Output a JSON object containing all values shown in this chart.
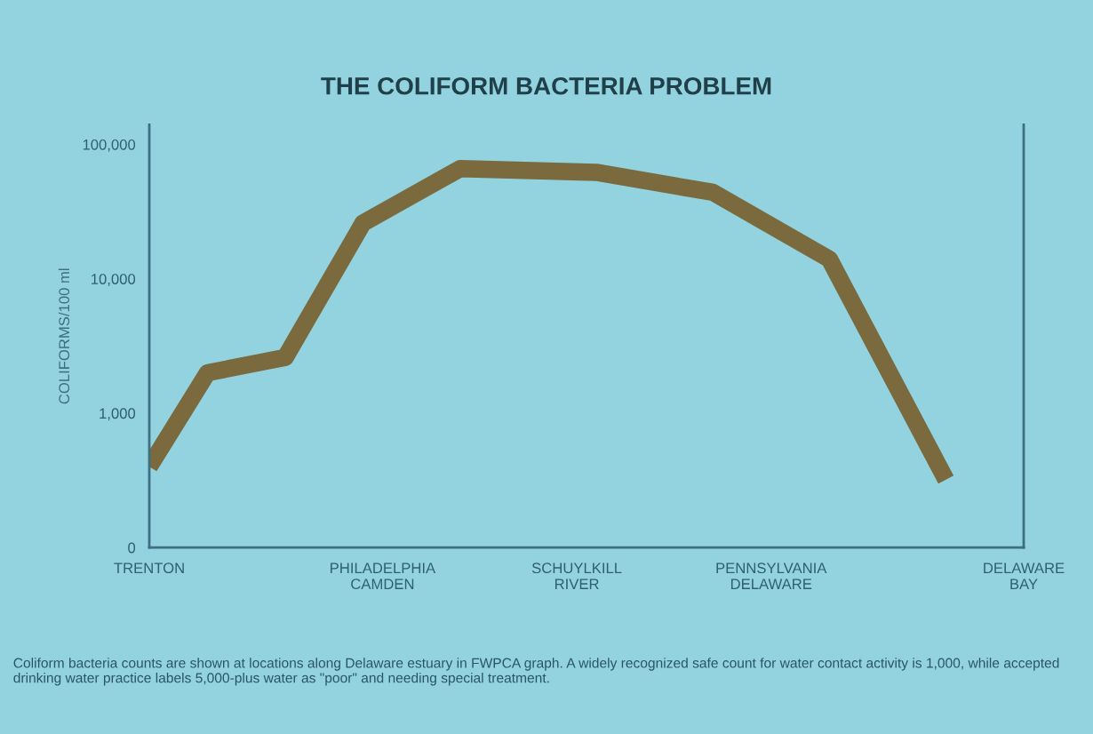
{
  "chart_data": {
    "type": "line",
    "title": "THE COLIFORM BACTERIA PROBLEM",
    "ylabel": "COLIFORMS/100 ml",
    "categories": [
      "TRENTON",
      null,
      null,
      null,
      null,
      null,
      null,
      null,
      null,
      null,
      null,
      null,
      "PHILADELPHIA\nCAMDEN",
      null,
      null,
      null,
      null,
      null,
      null,
      null,
      null,
      null,
      "SCHUYLKILL\nRIVER",
      null,
      null,
      null,
      null,
      null,
      null,
      null,
      null,
      null,
      "PENNSYLVANIA\nDELAWARE",
      null,
      null,
      null,
      null,
      null,
      null,
      null,
      null,
      null,
      null,
      null,
      null,
      "DELAWARE\nBAY"
    ],
    "series": [
      {
        "color": "#7a6a3e",
        "values": [
          400,
          null,
          null,
          2000,
          null,
          null,
          null,
          2600,
          null,
          null,
          null,
          26000,
          null,
          null,
          null,
          null,
          66000,
          null,
          null,
          null,
          null,
          null,
          null,
          62000,
          null,
          null,
          null,
          null,
          null,
          44000,
          null,
          null,
          null,
          null,
          null,
          14000,
          null,
          null,
          null,
          null,
          null,
          320,
          null,
          null,
          null,
          null
        ]
      }
    ],
    "log": "y",
    "ylim": [
      0,
      140000
    ],
    "yticks": [
      0,
      {
        "value": 1000,
        "label": "1,000"
      },
      {
        "value": 10000,
        "label": "10,000"
      },
      {
        "value": 100000,
        "label": "100,000"
      }
    ],
    "grid": false,
    "legend": false,
    "marker": "none",
    "line_style": "solid",
    "annotations": [
      "Coliform bacteria counts are shown at locations along Delaware estuary in FWPCA graph. A widely recognized safe count for water contact activity is 1,000, while accepted drinking water practice labels 5,000-plus water as \"poor\" and needing special treatment."
    ]
  }
}
